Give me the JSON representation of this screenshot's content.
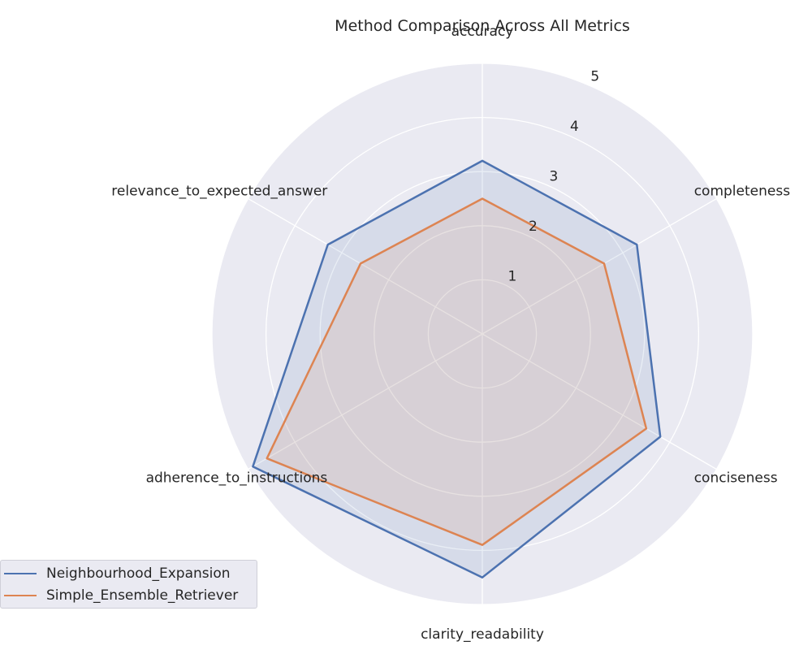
{
  "chart_data": {
    "type": "radar",
    "title": "Method Comparison Across All Metrics",
    "axes": [
      "accuracy",
      "completeness",
      "conciseness",
      "clarity_readability",
      "adherence_to_instructions",
      "relevance_to_expected_answer"
    ],
    "rlim": [
      0,
      5
    ],
    "rticks": [
      "1",
      "2",
      "3",
      "4",
      "5"
    ],
    "grid": true,
    "legend_position": "lower-left",
    "series": [
      {
        "name": "Neighbourhood_Expansion",
        "color": "#4c72b0",
        "values": [
          3.2,
          3.3,
          3.8,
          4.5,
          4.9,
          3.3
        ]
      },
      {
        "name": "Simple_Ensemble_Retriever",
        "color": "#dd8452",
        "values": [
          2.5,
          2.6,
          3.5,
          3.9,
          4.6,
          2.6
        ]
      }
    ]
  }
}
